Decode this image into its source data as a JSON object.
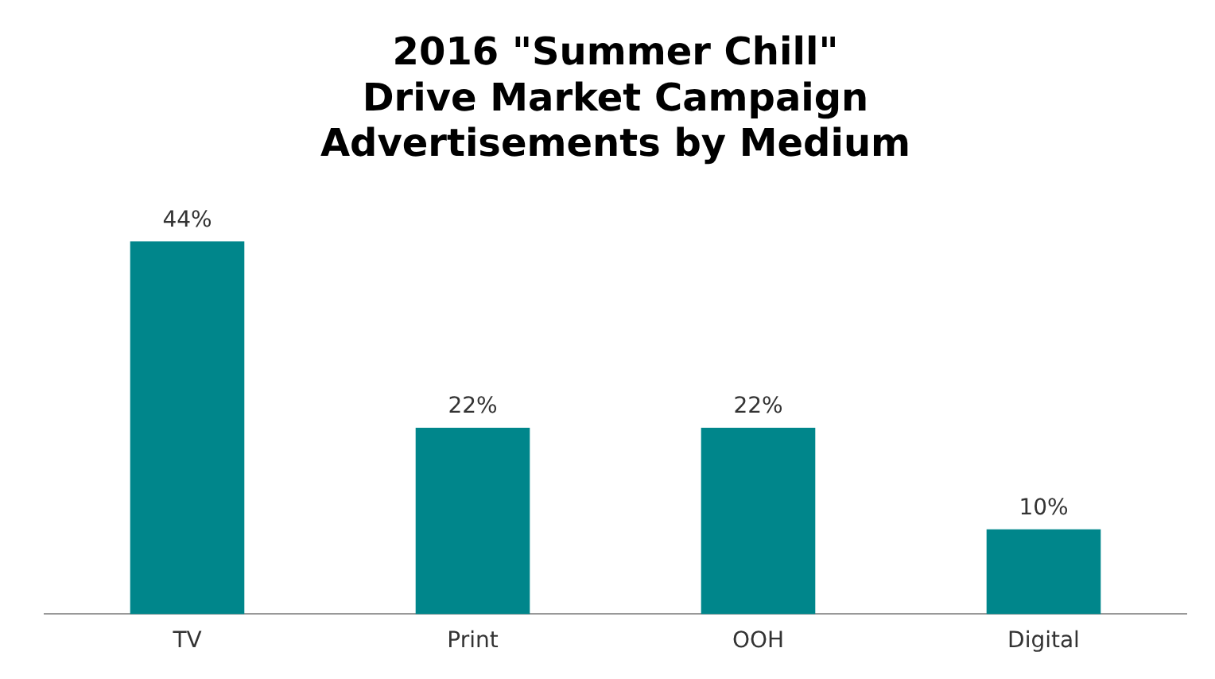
{
  "chart_data": {
    "type": "bar",
    "title": "2016 \"Summer Chill\"\nDrive Market Campaign\nAdvertisements by Medium",
    "categories": [
      "TV",
      "Print",
      "OOH",
      "Digital"
    ],
    "values": [
      44,
      22,
      22,
      10
    ],
    "value_labels": [
      "44%",
      "22%",
      "22%",
      "10%"
    ],
    "color": "#00868b",
    "grid": false,
    "legend": false
  }
}
